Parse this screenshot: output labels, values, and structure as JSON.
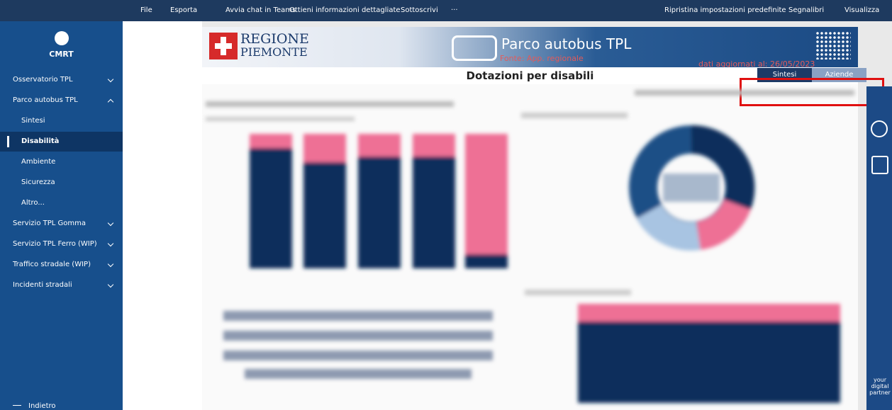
{
  "toolbar": {
    "left": [
      "File",
      "Esporta",
      "Avvia chat in Teams",
      "Ottieni informazioni dettagliate",
      "Sottoscrivi",
      "···"
    ],
    "right": [
      "Ripristina impostazioni predefinite",
      "Segnalibri",
      "Visualizza"
    ]
  },
  "sidebar": {
    "org": "CMRT",
    "nav": [
      {
        "label": "Osservatorio TPL",
        "expanded": false
      },
      {
        "label": "Parco autobus TPL",
        "expanded": true
      },
      {
        "label": "Sintesi",
        "sub": true
      },
      {
        "label": "Disabilità",
        "sub": true,
        "active": true
      },
      {
        "label": "Ambiente",
        "sub": true
      },
      {
        "label": "Sicurezza",
        "sub": true
      },
      {
        "label": "Altro...",
        "sub": true
      },
      {
        "label": "Servizio TPL Gomma",
        "expanded": false
      },
      {
        "label": "Servizio TPL Ferro (WIP)",
        "expanded": false
      },
      {
        "label": "Traffico stradale (WIP)",
        "expanded": false
      },
      {
        "label": "Incidenti stradali",
        "expanded": false
      }
    ],
    "back": "Indietro"
  },
  "report": {
    "region_line1": "REGIONE",
    "region_line2": "PIEMONTE",
    "title": "Parco autobus TPL",
    "source": "Fonte: App. regionale",
    "updated": "dati aggiornati al: 26/05/2023",
    "page_title": "Dotazioni per disabili",
    "buttons": [
      "Sintesi",
      "Aziende"
    ],
    "partner": "your digital partner"
  }
}
